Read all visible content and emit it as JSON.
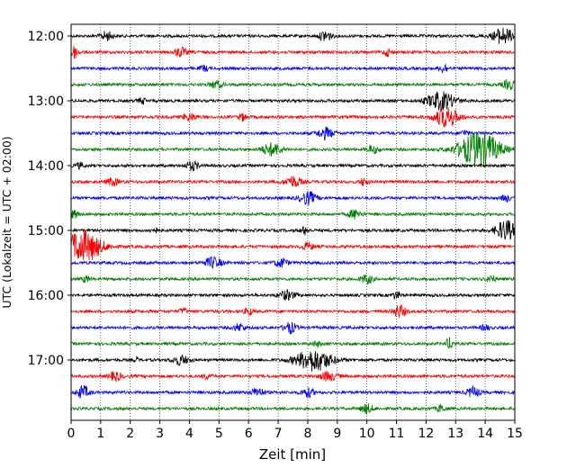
{
  "chart_data": {
    "type": "line",
    "subtype": "helicorder",
    "title": "",
    "xlabel": "Zeit  [min]",
    "ylabel": "UTC (Lokalzeit = UTC + 02:00)",
    "xlim": [
      0,
      15
    ],
    "x_ticks": [
      0,
      1,
      2,
      3,
      4,
      5,
      6,
      7,
      8,
      9,
      10,
      11,
      12,
      13,
      14,
      15
    ],
    "y_ticks": [
      {
        "label": "12:00",
        "row": 0
      },
      {
        "label": "13:00",
        "row": 4
      },
      {
        "label": "14:00",
        "row": 8
      },
      {
        "label": "15:00",
        "row": 12
      },
      {
        "label": "16:00",
        "row": 16
      },
      {
        "label": "17:00",
        "row": 20
      }
    ],
    "row_minutes": 15,
    "row_count": 24,
    "grid": {
      "x": true,
      "style": "dotted"
    },
    "colors": [
      "#000000",
      "#ff0000",
      "#0000ff",
      "#008000"
    ],
    "series": [
      {
        "start": "12:00",
        "color": "#000000",
        "events": [
          {
            "t": 1.2,
            "amp": 0.5,
            "w": 0.3
          },
          {
            "t": 8.6,
            "amp": 0.6,
            "w": 0.3
          },
          {
            "t": 14.6,
            "amp": 0.9,
            "w": 0.5
          }
        ]
      },
      {
        "start": "12:15",
        "color": "#ff0000",
        "events": [
          {
            "t": 0.1,
            "amp": 0.7,
            "w": 0.2
          },
          {
            "t": 3.7,
            "amp": 0.5,
            "w": 0.3
          },
          {
            "t": 10.7,
            "amp": 0.4,
            "w": 0.2
          }
        ]
      },
      {
        "start": "12:30",
        "color": "#0000ff",
        "events": [
          {
            "t": 12.6,
            "amp": 0.5,
            "w": 0.2
          },
          {
            "t": 4.5,
            "amp": 0.3,
            "w": 0.2
          }
        ]
      },
      {
        "start": "12:45",
        "color": "#008000",
        "events": [
          {
            "t": 4.9,
            "amp": 0.4,
            "w": 0.3
          },
          {
            "t": 14.8,
            "amp": 0.5,
            "w": 0.3
          }
        ]
      },
      {
        "start": "13:00",
        "color": "#000000",
        "events": [
          {
            "t": 12.5,
            "amp": 1.0,
            "w": 0.7
          },
          {
            "t": 2.4,
            "amp": 0.3,
            "w": 0.2
          }
        ]
      },
      {
        "start": "13:15",
        "color": "#ff0000",
        "events": [
          {
            "t": 12.7,
            "amp": 1.1,
            "w": 0.6
          },
          {
            "t": 4.0,
            "amp": 0.4,
            "w": 0.3
          },
          {
            "t": 5.8,
            "amp": 0.4,
            "w": 0.2
          }
        ]
      },
      {
        "start": "13:30",
        "color": "#0000ff",
        "events": [
          {
            "t": 8.6,
            "amp": 0.6,
            "w": 0.4
          },
          {
            "t": 13.3,
            "amp": 0.3,
            "w": 0.2
          }
        ]
      },
      {
        "start": "13:45",
        "color": "#008000",
        "events": [
          {
            "t": 13.8,
            "amp": 2.0,
            "w": 1.0
          },
          {
            "t": 6.8,
            "amp": 0.7,
            "w": 0.5
          },
          {
            "t": 10.2,
            "amp": 0.4,
            "w": 0.3
          }
        ]
      },
      {
        "start": "14:00",
        "color": "#000000",
        "events": [
          {
            "t": 4.1,
            "amp": 0.5,
            "w": 0.3
          },
          {
            "t": 0.3,
            "amp": 0.3,
            "w": 0.2
          }
        ]
      },
      {
        "start": "14:15",
        "color": "#ff0000",
        "events": [
          {
            "t": 7.5,
            "amp": 0.6,
            "w": 0.4
          },
          {
            "t": 1.4,
            "amp": 0.4,
            "w": 0.3
          },
          {
            "t": 9.9,
            "amp": 0.4,
            "w": 0.2
          }
        ]
      },
      {
        "start": "14:30",
        "color": "#0000ff",
        "events": [
          {
            "t": 8.0,
            "amp": 0.7,
            "w": 0.4
          },
          {
            "t": 14.7,
            "amp": 0.4,
            "w": 0.2
          }
        ]
      },
      {
        "start": "14:45",
        "color": "#008000",
        "events": [
          {
            "t": 9.6,
            "amp": 0.5,
            "w": 0.3
          },
          {
            "t": 0.1,
            "amp": 0.4,
            "w": 0.2
          }
        ]
      },
      {
        "start": "15:00",
        "color": "#000000",
        "events": [
          {
            "t": 14.7,
            "amp": 1.1,
            "w": 0.5
          },
          {
            "t": 7.9,
            "amp": 0.4,
            "w": 0.2
          },
          {
            "t": 2.8,
            "amp": 0.3,
            "w": 0.2
          }
        ]
      },
      {
        "start": "15:15",
        "color": "#ff0000",
        "events": [
          {
            "t": 0.4,
            "amp": 1.8,
            "w": 0.9
          },
          {
            "t": 8.0,
            "amp": 0.4,
            "w": 0.3
          }
        ]
      },
      {
        "start": "15:30",
        "color": "#0000ff",
        "events": [
          {
            "t": 4.8,
            "amp": 0.6,
            "w": 0.4
          },
          {
            "t": 7.1,
            "amp": 0.5,
            "w": 0.3
          }
        ]
      },
      {
        "start": "15:45",
        "color": "#008000",
        "events": [
          {
            "t": 10.0,
            "amp": 0.5,
            "w": 0.3
          },
          {
            "t": 14.2,
            "amp": 0.4,
            "w": 0.2
          },
          {
            "t": 0.5,
            "amp": 0.3,
            "w": 0.2
          }
        ]
      },
      {
        "start": "16:00",
        "color": "#000000",
        "events": [
          {
            "t": 7.3,
            "amp": 0.5,
            "w": 0.4
          },
          {
            "t": 11.0,
            "amp": 0.4,
            "w": 0.2
          }
        ]
      },
      {
        "start": "16:15",
        "color": "#ff0000",
        "events": [
          {
            "t": 11.1,
            "amp": 0.7,
            "w": 0.3
          },
          {
            "t": 6.0,
            "amp": 0.4,
            "w": 0.2
          },
          {
            "t": 3.8,
            "amp": 0.3,
            "w": 0.2
          }
        ]
      },
      {
        "start": "16:30",
        "color": "#0000ff",
        "events": [
          {
            "t": 7.4,
            "amp": 0.6,
            "w": 0.3
          },
          {
            "t": 5.7,
            "amp": 0.4,
            "w": 0.3
          },
          {
            "t": 14.0,
            "amp": 0.3,
            "w": 0.2
          }
        ]
      },
      {
        "start": "16:45",
        "color": "#008000",
        "events": [
          {
            "t": 12.8,
            "amp": 0.6,
            "w": 0.2
          },
          {
            "t": 8.3,
            "amp": 0.3,
            "w": 0.2
          }
        ]
      },
      {
        "start": "17:00",
        "color": "#000000",
        "events": [
          {
            "t": 8.2,
            "amp": 1.2,
            "w": 0.9
          },
          {
            "t": 3.7,
            "amp": 0.5,
            "w": 0.4
          },
          {
            "t": 2.2,
            "amp": 0.3,
            "w": 0.1
          }
        ]
      },
      {
        "start": "17:15",
        "color": "#ff0000",
        "events": [
          {
            "t": 1.5,
            "amp": 0.5,
            "w": 0.3
          },
          {
            "t": 8.7,
            "amp": 0.5,
            "w": 0.4
          },
          {
            "t": 4.6,
            "amp": 0.3,
            "w": 0.2
          }
        ]
      },
      {
        "start": "17:30",
        "color": "#0000ff",
        "events": [
          {
            "t": 0.4,
            "amp": 0.7,
            "w": 0.3
          },
          {
            "t": 6.3,
            "amp": 0.5,
            "w": 0.3
          },
          {
            "t": 8.0,
            "amp": 0.5,
            "w": 0.3
          },
          {
            "t": 13.6,
            "amp": 0.6,
            "w": 0.3
          }
        ]
      },
      {
        "start": "17:45",
        "color": "#008000",
        "events": [
          {
            "t": 10.0,
            "amp": 0.5,
            "w": 0.3
          },
          {
            "t": 12.5,
            "amp": 0.4,
            "w": 0.2
          }
        ]
      }
    ]
  }
}
